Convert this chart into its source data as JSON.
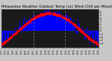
{
  "title": "Milwaukee Weather Outdoor Temp (vs) Wind Chill per Minute (Last 24 Hours)",
  "background_color": "#c8c8c8",
  "plot_bg_color": "#1a1a1a",
  "bar_color": "#0000ff",
  "line_color": "#ff0000",
  "n_points": 1440,
  "ylim": [
    -5.5,
    7.0
  ],
  "yticks": [
    -4,
    -3,
    -2,
    -1,
    0,
    1,
    2,
    3,
    4,
    5,
    6
  ],
  "title_fontsize": 3.8,
  "vline_positions": [
    0.33,
    0.66
  ],
  "vline_color": "#888888",
  "figsize": [
    1.6,
    0.87
  ],
  "dpi": 100
}
